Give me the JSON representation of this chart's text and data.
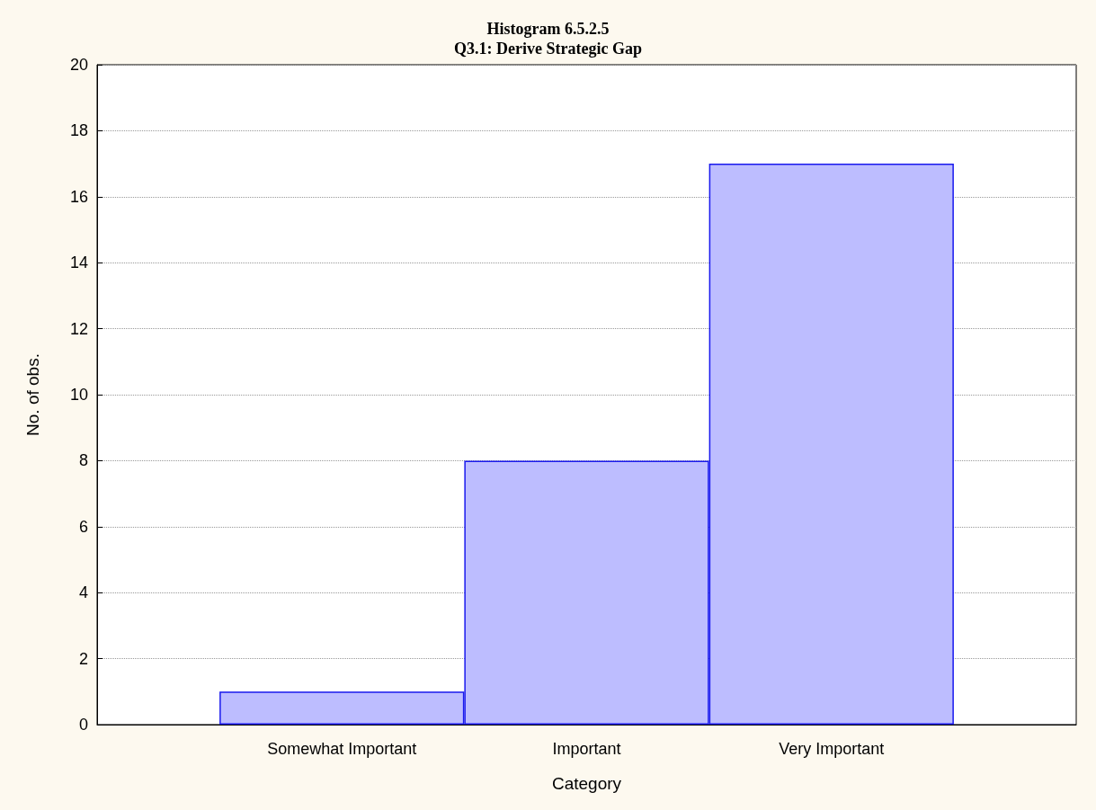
{
  "chart_data": {
    "type": "bar",
    "title": "Histogram 6.5.2.5",
    "subtitle": "Q3.1: Derive Strategic Gap",
    "xlabel": "Category",
    "ylabel": "No. of obs.",
    "categories": [
      "Somewhat Important",
      "Important",
      "Very Important"
    ],
    "values": [
      1,
      8,
      17
    ],
    "color": "#bdbdff",
    "ylim": [
      0,
      20
    ],
    "yticks": [
      0,
      2,
      4,
      6,
      8,
      10,
      12,
      14,
      16,
      18,
      20
    ],
    "grid": "y"
  }
}
